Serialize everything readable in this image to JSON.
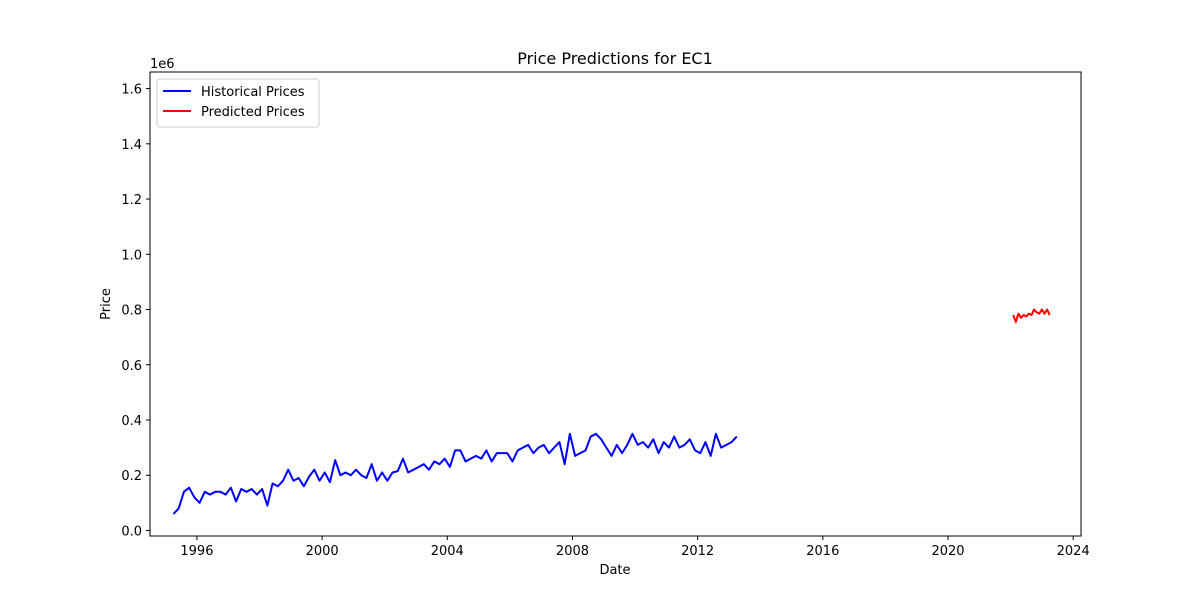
{
  "chart_data": {
    "type": "line",
    "title": "Price Predictions for EC1",
    "xlabel": "Date",
    "ylabel": "Price",
    "y_scale_label": "1e6",
    "xlim": [
      "1994-07",
      "2024-04"
    ],
    "ylim": [
      -0.02,
      1.66
    ],
    "x_ticks": [
      "1996",
      "2000",
      "2004",
      "2008",
      "2012",
      "2016",
      "2020",
      "2024"
    ],
    "y_ticks": [
      "0.0",
      "0.2",
      "0.4",
      "0.6",
      "0.8",
      "1.0",
      "1.2",
      "1.4",
      "1.6"
    ],
    "grid": false,
    "legend_position": "upper-left",
    "series": [
      {
        "name": "Historical Prices",
        "color": "#0000ff",
        "points": [
          [
            "1995-04",
            0.06
          ],
          [
            "1995-06",
            0.08
          ],
          [
            "1995-08",
            0.14
          ],
          [
            "1995-10",
            0.155
          ],
          [
            "1995-12",
            0.12
          ],
          [
            "1996-02",
            0.1
          ],
          [
            "1996-04",
            0.14
          ],
          [
            "1996-06",
            0.13
          ],
          [
            "1996-08",
            0.14
          ],
          [
            "1996-10",
            0.14
          ],
          [
            "1996-12",
            0.13
          ],
          [
            "1997-02",
            0.155
          ],
          [
            "1997-04",
            0.105
          ],
          [
            "1997-06",
            0.15
          ],
          [
            "1997-08",
            0.14
          ],
          [
            "1997-10",
            0.15
          ],
          [
            "1997-12",
            0.13
          ],
          [
            "1998-02",
            0.15
          ],
          [
            "1998-04",
            0.09
          ],
          [
            "1998-06",
            0.17
          ],
          [
            "1998-08",
            0.16
          ],
          [
            "1998-10",
            0.18
          ],
          [
            "1998-12",
            0.22
          ],
          [
            "1999-02",
            0.18
          ],
          [
            "1999-04",
            0.19
          ],
          [
            "1999-06",
            0.16
          ],
          [
            "1999-08",
            0.195
          ],
          [
            "1999-10",
            0.22
          ],
          [
            "1999-12",
            0.18
          ],
          [
            "2000-02",
            0.21
          ],
          [
            "2000-04",
            0.175
          ],
          [
            "2000-06",
            0.255
          ],
          [
            "2000-08",
            0.2
          ],
          [
            "2000-10",
            0.21
          ],
          [
            "2000-12",
            0.2
          ],
          [
            "2001-02",
            0.22
          ],
          [
            "2001-04",
            0.2
          ],
          [
            "2001-06",
            0.19
          ],
          [
            "2001-08",
            0.24
          ],
          [
            "2001-10",
            0.18
          ],
          [
            "2001-12",
            0.21
          ],
          [
            "2002-02",
            0.18
          ],
          [
            "2002-04",
            0.21
          ],
          [
            "2002-06",
            0.215
          ],
          [
            "2002-08",
            0.26
          ],
          [
            "2002-10",
            0.21
          ],
          [
            "2002-12",
            0.22
          ],
          [
            "2003-02",
            0.23
          ],
          [
            "2003-04",
            0.24
          ],
          [
            "2003-06",
            0.22
          ],
          [
            "2003-08",
            0.25
          ],
          [
            "2003-10",
            0.24
          ],
          [
            "2003-12",
            0.26
          ],
          [
            "2004-02",
            0.23
          ],
          [
            "2004-04",
            0.29
          ],
          [
            "2004-06",
            0.29
          ],
          [
            "2004-08",
            0.25
          ],
          [
            "2004-10",
            0.26
          ],
          [
            "2004-12",
            0.27
          ],
          [
            "2005-02",
            0.26
          ],
          [
            "2005-04",
            0.29
          ],
          [
            "2005-06",
            0.25
          ],
          [
            "2005-08",
            0.28
          ],
          [
            "2005-10",
            0.28
          ],
          [
            "2005-12",
            0.28
          ],
          [
            "2006-02",
            0.25
          ],
          [
            "2006-04",
            0.29
          ],
          [
            "2006-06",
            0.3
          ],
          [
            "2006-08",
            0.31
          ],
          [
            "2006-10",
            0.28
          ],
          [
            "2006-12",
            0.3
          ],
          [
            "2007-02",
            0.31
          ],
          [
            "2007-04",
            0.28
          ],
          [
            "2007-06",
            0.3
          ],
          [
            "2007-08",
            0.32
          ],
          [
            "2007-10",
            0.24
          ],
          [
            "2007-12",
            0.35
          ],
          [
            "2008-02",
            0.27
          ],
          [
            "2008-04",
            0.28
          ],
          [
            "2008-06",
            0.29
          ],
          [
            "2008-08",
            0.34
          ],
          [
            "2008-10",
            0.35
          ],
          [
            "2008-12",
            0.33
          ],
          [
            "2009-02",
            0.3
          ],
          [
            "2009-04",
            0.27
          ],
          [
            "2009-06",
            0.31
          ],
          [
            "2009-08",
            0.28
          ],
          [
            "2009-10",
            0.31
          ],
          [
            "2009-12",
            0.35
          ],
          [
            "2010-02",
            0.31
          ],
          [
            "2010-04",
            0.32
          ],
          [
            "2010-06",
            0.3
          ],
          [
            "2010-08",
            0.33
          ],
          [
            "2010-10",
            0.28
          ],
          [
            "2010-12",
            0.32
          ],
          [
            "2011-02",
            0.3
          ],
          [
            "2011-04",
            0.34
          ],
          [
            "2011-06",
            0.3
          ],
          [
            "2011-08",
            0.31
          ],
          [
            "2011-10",
            0.33
          ],
          [
            "2011-12",
            0.29
          ],
          [
            "2012-02",
            0.28
          ],
          [
            "2012-04",
            0.32
          ],
          [
            "2012-06",
            0.27
          ],
          [
            "2012-08",
            0.35
          ],
          [
            "2012-10",
            0.3
          ],
          [
            "2012-12",
            0.31
          ],
          [
            "2013-02",
            0.32
          ],
          [
            "2013-04",
            0.34
          ]
        ]
      },
      {
        "name": "Predicted Prices",
        "color": "#ff0000",
        "points": [
          [
            "2022-02",
            0.78
          ],
          [
            "2022-03",
            0.755
          ],
          [
            "2022-04",
            0.785
          ],
          [
            "2022-05",
            0.77
          ],
          [
            "2022-06",
            0.78
          ],
          [
            "2022-07",
            0.775
          ],
          [
            "2022-08",
            0.785
          ],
          [
            "2022-09",
            0.78
          ],
          [
            "2022-10",
            0.8
          ],
          [
            "2022-11",
            0.79
          ],
          [
            "2022-12",
            0.785
          ],
          [
            "2023-01",
            0.8
          ],
          [
            "2023-02",
            0.785
          ],
          [
            "2023-03",
            0.8
          ],
          [
            "2023-04",
            0.78
          ]
        ]
      }
    ]
  }
}
